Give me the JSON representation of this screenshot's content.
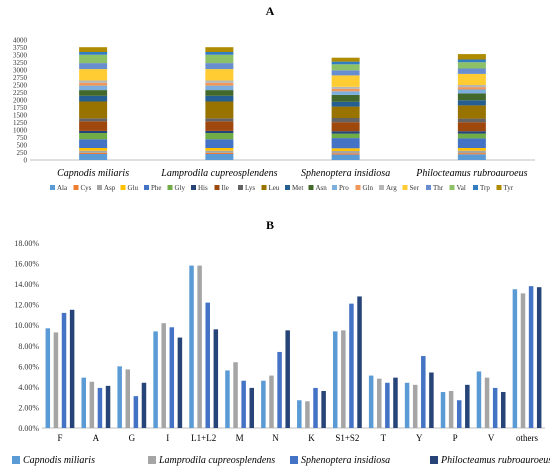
{
  "chart_data": [
    {
      "panel": "A",
      "type": "bar",
      "stacked": true,
      "categories": [
        "Capnodis miliaris",
        "Lamprodila cupreosplendens",
        "Sphenoptera insidiosa",
        "Philocteamus rubroauroeus"
      ],
      "ylim": [
        0,
        4000
      ],
      "yticks": [
        "0",
        "250",
        "500",
        "750",
        "1000",
        "1250",
        "1500",
        "1750",
        "2000",
        "2250",
        "2500",
        "2750",
        "3000",
        "3250",
        "3500",
        "3750",
        "4000"
      ],
      "grid": false,
      "legend_position": "bottom",
      "series": [
        {
          "name": "Ala",
          "color": "#5b9bd5",
          "values": [
            200,
            200,
            180,
            190
          ]
        },
        {
          "name": "Cys",
          "color": "#ed7d31",
          "values": [
            40,
            40,
            40,
            40
          ]
        },
        {
          "name": "Asp",
          "color": "#a5a5a5",
          "values": [
            70,
            70,
            80,
            80
          ]
        },
        {
          "name": "Glu",
          "color": "#ffc000",
          "values": [
            90,
            90,
            90,
            90
          ]
        },
        {
          "name": "Phe",
          "color": "#4472c4",
          "values": [
            290,
            290,
            340,
            320
          ]
        },
        {
          "name": "Gly",
          "color": "#70ad47",
          "values": [
            210,
            210,
            150,
            160
          ]
        },
        {
          "name": "His",
          "color": "#264478",
          "values": [
            70,
            70,
            80,
            80
          ]
        },
        {
          "name": "Ile",
          "color": "#9e480e",
          "values": [
            320,
            320,
            300,
            300
          ]
        },
        {
          "name": "Lys",
          "color": "#636363",
          "values": [
            100,
            100,
            140,
            120
          ]
        },
        {
          "name": "Leu",
          "color": "#997300",
          "values": [
            560,
            560,
            380,
            440
          ]
        },
        {
          "name": "Met",
          "color": "#255e91",
          "values": [
            190,
            190,
            160,
            170
          ]
        },
        {
          "name": "Asn",
          "color": "#43682b",
          "values": [
            190,
            190,
            230,
            230
          ]
        },
        {
          "name": "Pro",
          "color": "#7cafdd",
          "values": [
            150,
            150,
            120,
            130
          ]
        },
        {
          "name": "Gln",
          "color": "#f1975a",
          "values": [
            90,
            90,
            80,
            80
          ]
        },
        {
          "name": "Arg",
          "color": "#b7b7b7",
          "values": [
            80,
            80,
            70,
            70
          ]
        },
        {
          "name": "Ser",
          "color": "#ffcd33",
          "values": [
            380,
            380,
            380,
            370
          ]
        },
        {
          "name": "Thr",
          "color": "#698ed0",
          "values": [
            200,
            200,
            170,
            180
          ]
        },
        {
          "name": "Val",
          "color": "#8cc168",
          "values": [
            280,
            280,
            200,
            210
          ]
        },
        {
          "name": "Trp",
          "color": "#327dc2",
          "values": [
            90,
            90,
            90,
            90
          ]
        },
        {
          "name": "Tyr",
          "color": "#ae8b00",
          "values": [
            160,
            160,
            130,
            180
          ]
        }
      ]
    },
    {
      "panel": "B",
      "type": "bar",
      "categories": [
        "F",
        "A",
        "G",
        "I",
        "L1+L2",
        "M",
        "N",
        "K",
        "S1+S2",
        "T",
        "Y",
        "P",
        "V",
        "others"
      ],
      "ylim": [
        0,
        18
      ],
      "yticks": [
        "0.00%",
        "2.00%",
        "4.00%",
        "6.00%",
        "8.00%",
        "10.00%",
        "12.00%",
        "14.00%",
        "16.00%",
        "18.00%"
      ],
      "grid": false,
      "legend_position": "bottom",
      "series": [
        {
          "name": "Capnodis miliaris",
          "color": "#5b9bd5",
          "values": [
            9.7,
            4.9,
            6.0,
            9.4,
            15.8,
            5.6,
            4.6,
            2.7,
            9.4,
            5.1,
            4.4,
            3.5,
            5.5,
            13.5
          ]
        },
        {
          "name": "Lamprodila cupreosplendens",
          "color": "#a5a5a5",
          "values": [
            9.3,
            4.5,
            5.7,
            10.2,
            15.8,
            6.4,
            5.1,
            2.6,
            9.5,
            4.8,
            4.2,
            3.6,
            4.9,
            13.1
          ]
        },
        {
          "name": "Sphenoptera insidiosa",
          "color": "#4472c4",
          "values": [
            11.2,
            3.9,
            3.1,
            9.8,
            12.2,
            4.6,
            7.4,
            3.9,
            12.1,
            4.4,
            7.0,
            2.7,
            3.9,
            13.8
          ]
        },
        {
          "name": "Philocteamus rubroauroeus",
          "color": "#264478",
          "values": [
            11.5,
            4.1,
            4.4,
            8.8,
            9.6,
            3.9,
            9.5,
            3.6,
            12.8,
            4.9,
            5.4,
            4.2,
            3.5,
            13.7
          ]
        }
      ]
    }
  ]
}
